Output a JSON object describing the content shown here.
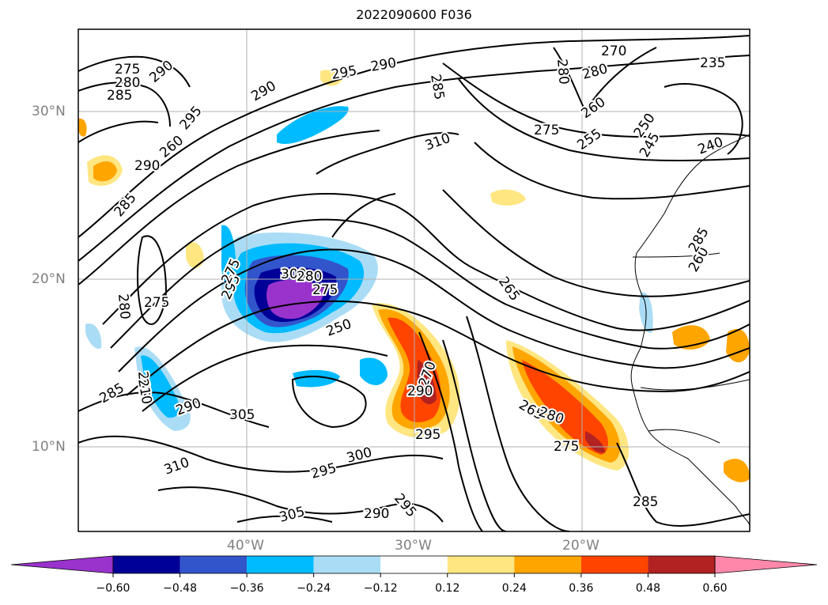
{
  "title": "2022090600 F036",
  "lat_labels": [
    "30°N",
    "20°N",
    "10°N"
  ],
  "lon_labels": [
    "40°W",
    "30°W",
    "20°W"
  ],
  "contour_labels": [
    "275",
    "280",
    "285",
    "290",
    "295",
    "290",
    "285",
    "280",
    "270",
    "280",
    "275",
    "260",
    "255",
    "250",
    "245",
    "240",
    "235",
    "260",
    "290",
    "295",
    "285",
    "290",
    "280",
    "275",
    "265",
    "260",
    "295",
    "300",
    "275",
    "250",
    "265",
    "285",
    "290",
    "305",
    "310",
    "270",
    "265",
    "280",
    "275",
    "295",
    "300",
    "295",
    "305",
    "290",
    "295",
    "285",
    "280",
    "275",
    "290",
    "285",
    "310",
    "210"
  ],
  "colorbar": {
    "ticks": [
      "−0.60",
      "−0.48",
      "−0.36",
      "−0.24",
      "−0.12",
      "0.12",
      "0.24",
      "0.36",
      "0.48",
      "0.60"
    ],
    "colors": [
      "#9933cc",
      "#000099",
      "#3355cc",
      "#00bbff",
      "#aaddf5",
      "#ffffff",
      "#ffe680",
      "#ffa500",
      "#ff4400",
      "#b22222",
      "#ff88aa"
    ]
  }
}
